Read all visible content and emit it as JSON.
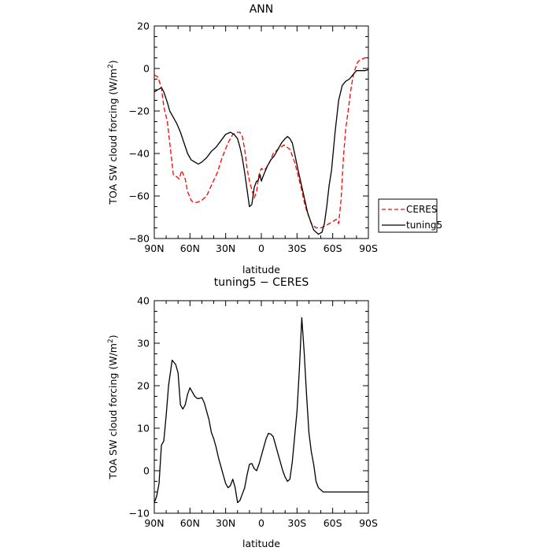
{
  "chart_data": [
    {
      "type": "line",
      "title": "ANN",
      "xlabel": "latitude",
      "ylabel": "TOA SW cloud forcing (W/m",
      "ylabel_sup": "2",
      "ylabel_close": ")",
      "xlim": [
        90,
        -90
      ],
      "ylim": [
        -80,
        20
      ],
      "x_ticks": [
        90,
        60,
        30,
        0,
        -30,
        -60,
        -90
      ],
      "x_tick_labels": [
        "90N",
        "60N",
        "30N",
        "0",
        "30S",
        "60S",
        "90S"
      ],
      "y_ticks": [
        -80,
        -60,
        -40,
        -20,
        0,
        20
      ],
      "y_tick_labels": [
        "−80",
        "−60",
        "−40",
        "−20",
        "0",
        "20"
      ],
      "legend": {
        "position": "right",
        "entries": [
          "CERES",
          "tuning5"
        ]
      },
      "series": [
        {
          "name": "CERES",
          "color": "#ff0000",
          "dash": "dashed",
          "x": [
            90,
            87,
            84,
            82,
            79,
            77,
            74,
            71,
            69,
            67,
            64,
            62,
            59,
            57,
            54,
            50,
            46,
            42,
            37,
            33,
            28,
            24,
            20,
            18,
            16,
            14,
            12,
            10,
            8,
            6,
            4,
            2,
            0,
            -2,
            -4,
            -7,
            -10,
            -14,
            -19,
            -24,
            -28,
            -33,
            -37,
            -42,
            -46,
            -50,
            -54,
            -57,
            -60,
            -63,
            -65,
            -67,
            -69,
            -71,
            -73,
            -75,
            -77,
            -79,
            -81,
            -83,
            -85,
            -87,
            -90
          ],
          "y": [
            -3,
            -4,
            -9,
            -18,
            -25,
            -35,
            -50,
            -51,
            -52,
            -48,
            -52,
            -58,
            -62,
            -63,
            -63,
            -62,
            -60,
            -55,
            -49,
            -42,
            -35,
            -31,
            -30,
            -30,
            -32,
            -38,
            -47,
            -53,
            -57,
            -61,
            -58,
            -50,
            -47,
            -48,
            -47,
            -44,
            -40,
            -38,
            -36,
            -38,
            -44,
            -55,
            -65,
            -73,
            -75,
            -75,
            -74,
            -73,
            -72,
            -71,
            -73,
            -62,
            -42,
            -28,
            -20,
            -11,
            -4,
            0,
            3,
            4,
            4.5,
            5,
            5
          ]
        },
        {
          "name": "tuning5",
          "color": "#000000",
          "dash": "solid",
          "x": [
            90,
            87,
            84,
            82,
            79,
            77,
            74,
            71,
            68,
            65,
            62,
            59,
            56,
            53,
            50,
            46,
            42,
            38,
            34,
            30,
            26,
            23,
            20,
            18,
            16,
            14,
            12,
            10,
            8,
            6,
            4,
            3,
            1,
            0,
            -2,
            -5,
            -8,
            -11,
            -14,
            -17,
            -20,
            -22,
            -24,
            -26,
            -28,
            -31,
            -35,
            -39,
            -44,
            -48,
            -51,
            -53,
            -55,
            -57,
            -59,
            -62,
            -65,
            -68,
            -71,
            -74,
            -77,
            -80,
            -82,
            -85,
            -87,
            -90
          ],
          "y": [
            -11,
            -10,
            -9,
            -11,
            -16,
            -20,
            -23,
            -26,
            -30,
            -35,
            -40,
            -43,
            -44,
            -45,
            -44,
            -42,
            -39,
            -37,
            -34,
            -31,
            -30,
            -31,
            -33,
            -37,
            -42,
            -49,
            -57,
            -65,
            -64,
            -56,
            -53,
            -53,
            -50,
            -53,
            -50,
            -46,
            -43,
            -41,
            -38,
            -35,
            -33,
            -32,
            -33,
            -35,
            -40,
            -48,
            -58,
            -68,
            -76,
            -78,
            -77,
            -73,
            -65,
            -55,
            -48,
            -30,
            -15,
            -8,
            -6,
            -5,
            -3,
            -1,
            -1,
            -1,
            -1,
            -0.5
          ]
        }
      ]
    },
    {
      "type": "line",
      "title": "tuning5 − CERES",
      "xlabel": "latitude",
      "ylabel": "TOA SW cloud forcing (W/m",
      "ylabel_sup": "2",
      "ylabel_close": ")",
      "xlim": [
        90,
        -90
      ],
      "ylim": [
        -10,
        40
      ],
      "x_ticks": [
        90,
        60,
        30,
        0,
        -30,
        -60,
        -90
      ],
      "x_tick_labels": [
        "90N",
        "60N",
        "30N",
        "0",
        "30S",
        "60S",
        "90S"
      ],
      "y_ticks": [
        -10,
        0,
        10,
        20,
        30,
        40
      ],
      "y_tick_labels": [
        "−10",
        "0",
        "10",
        "20",
        "30",
        "40"
      ],
      "series": [
        {
          "color": "#000000",
          "dash": "solid",
          "x": [
            90,
            88,
            86,
            84,
            82,
            80,
            78,
            75,
            72,
            70,
            68,
            66,
            64,
            62,
            60,
            58,
            56,
            54,
            52,
            50,
            48,
            46,
            44,
            42,
            40,
            38,
            36,
            34,
            32,
            30,
            28,
            26,
            24,
            22,
            20,
            18,
            16,
            14,
            12,
            10,
            8,
            6,
            4,
            2,
            0,
            -2,
            -4,
            -6,
            -8,
            -10,
            -12,
            -14,
            -16,
            -18,
            -20,
            -22,
            -24,
            -26,
            -28,
            -30,
            -32,
            -34,
            -36,
            -38,
            -40,
            -42,
            -44,
            -46,
            -48,
            -50,
            -52,
            -54,
            -56,
            -58,
            -60,
            -62,
            -64,
            -66,
            -68,
            -70,
            -72,
            -74,
            -76,
            -78,
            -80,
            -82,
            -84,
            -86,
            -88,
            -90
          ],
          "y": [
            -7.5,
            -6,
            -3,
            6,
            7,
            13,
            20,
            26,
            25,
            23,
            15.5,
            14.5,
            15.5,
            18,
            19.5,
            18.5,
            17.5,
            17,
            17,
            17.2,
            16,
            14,
            12,
            9,
            7.5,
            5.5,
            3,
            1,
            -1,
            -3,
            -4,
            -3.5,
            -2,
            -4,
            -7.5,
            -7,
            -5.5,
            -4,
            -1,
            1.5,
            1.7,
            0.5,
            0,
            1.5,
            3.5,
            5.5,
            7.5,
            8.8,
            8.6,
            8,
            6,
            4,
            2,
            0,
            -1.5,
            -2.5,
            -2,
            2,
            8,
            14,
            24,
            36,
            28,
            18,
            9,
            4.5,
            1.5,
            -2.5,
            -4,
            -4.5,
            -5,
            -5,
            -5,
            -5,
            -5,
            -5,
            -5,
            -5,
            -5,
            -5,
            -5,
            -5,
            -5,
            -5,
            -5,
            -5,
            -5,
            -5,
            -5,
            -5
          ]
        }
      ]
    }
  ]
}
